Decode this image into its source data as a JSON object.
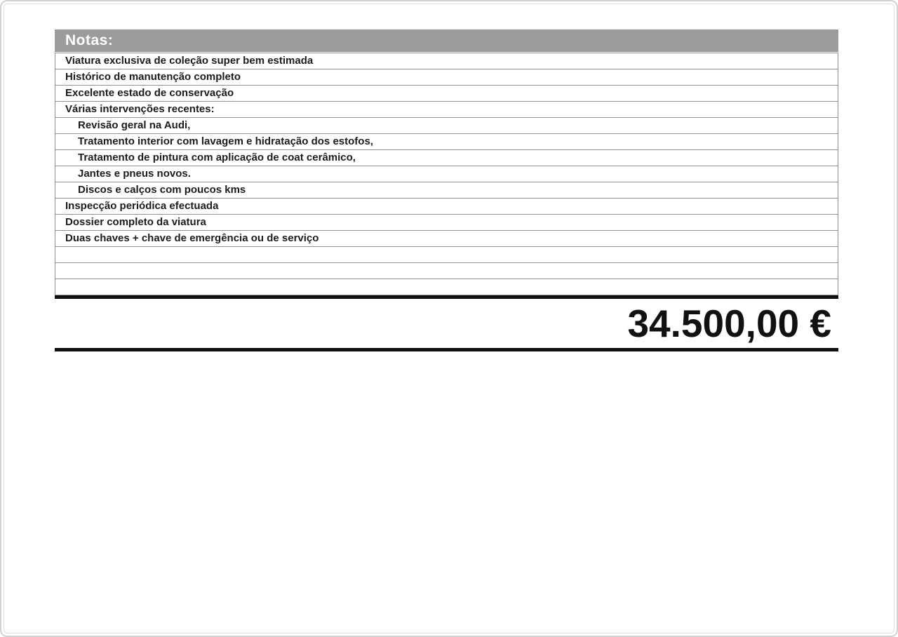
{
  "notes": {
    "header": "Notas:",
    "rows": [
      {
        "text": "Viatura exclusiva de coleção super bem estimada",
        "indent": false
      },
      {
        "text": "Histórico de manutenção completo",
        "indent": false
      },
      {
        "text": "Excelente estado de conservação",
        "indent": false
      },
      {
        "text": "Várias intervenções recentes:",
        "indent": false
      },
      {
        "text": "Revisão geral na Audi,",
        "indent": true
      },
      {
        "text": "Tratamento interior com lavagem e hidratação dos estofos,",
        "indent": true
      },
      {
        "text": "Tratamento de pintura com aplicação de coat cerâmico,",
        "indent": true
      },
      {
        "text": "Jantes e pneus novos.",
        "indent": true
      },
      {
        "text": "Discos e calços com poucos kms",
        "indent": true
      },
      {
        "text": "Inspecção periódica efectuada",
        "indent": false
      },
      {
        "text": "Dossier completo da viatura",
        "indent": false
      },
      {
        "text": "Duas chaves + chave de emergência ou de serviço",
        "indent": false
      },
      {
        "text": "",
        "indent": false
      },
      {
        "text": "",
        "indent": false
      },
      {
        "text": "",
        "indent": false
      }
    ]
  },
  "price": {
    "value": "34.500,00 €"
  },
  "colors": {
    "header_bg": "#9b9b9b",
    "header_text": "#ffffff",
    "row_border": "#8f8f8f",
    "thick_line": "#101010",
    "page_border": "#dcdcdc",
    "text": "#1c1c1c"
  }
}
